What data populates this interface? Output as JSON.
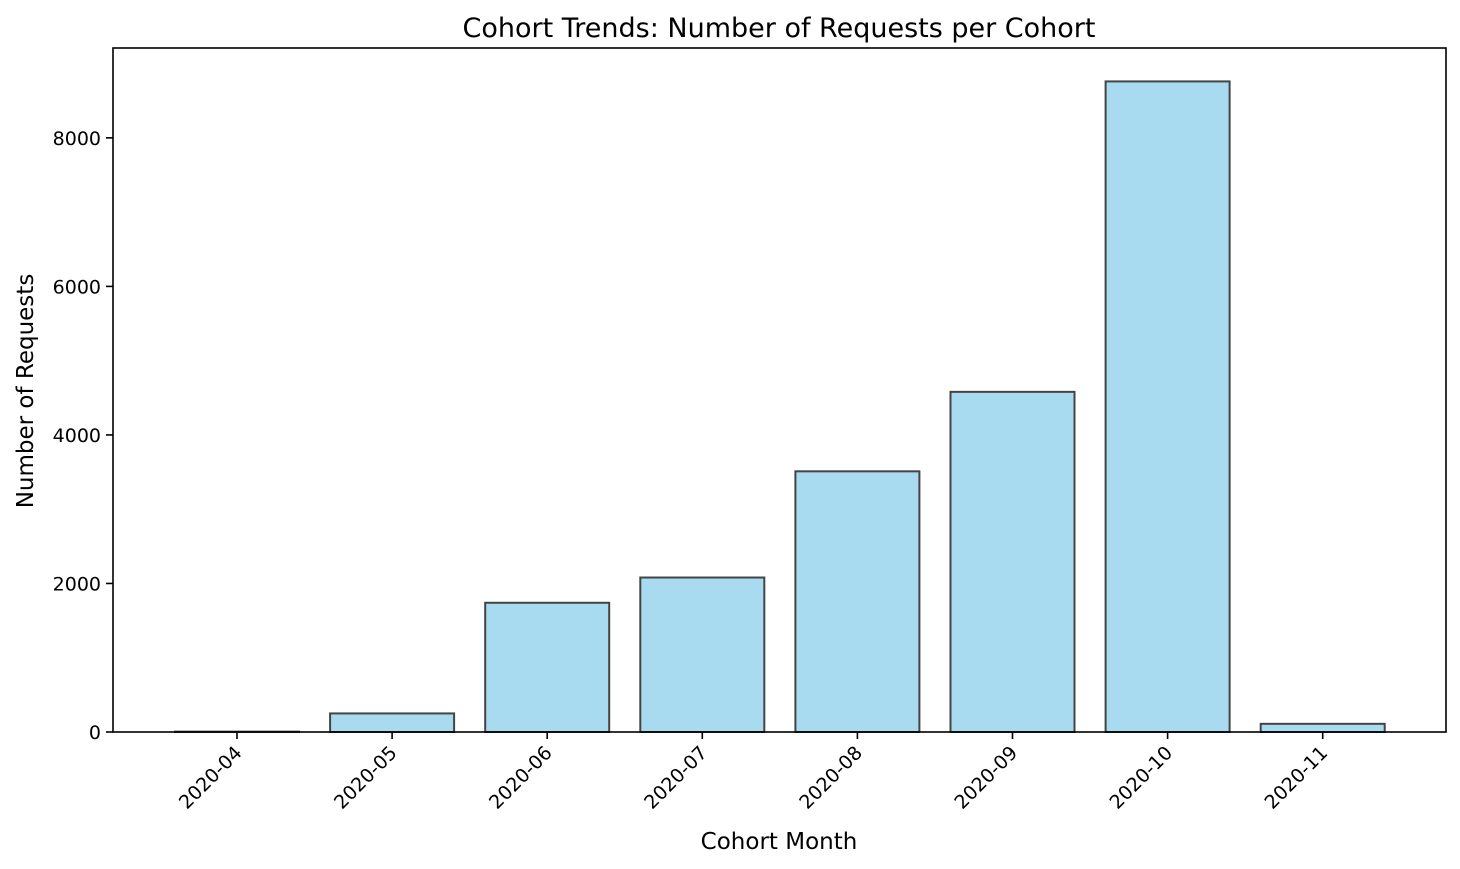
{
  "chart_data": {
    "type": "bar",
    "title": "Cohort Trends: Number of Requests per Cohort",
    "xlabel": "Cohort Month",
    "ylabel": "Number of Requests",
    "categories": [
      "2020-04",
      "2020-05",
      "2020-06",
      "2020-07",
      "2020-08",
      "2020-09",
      "2020-10",
      "2020-11"
    ],
    "values": [
      5,
      250,
      1740,
      2080,
      3510,
      4580,
      8760,
      110
    ],
    "ylim": [
      0,
      9210
    ],
    "yticks": [
      0,
      2000,
      4000,
      6000,
      8000
    ],
    "ytick_labels": [
      "0",
      "2000",
      "4000",
      "6000",
      "8000"
    ],
    "grid": false,
    "bar_color": "#a8dbef",
    "bar_edge_color": "#444444"
  }
}
